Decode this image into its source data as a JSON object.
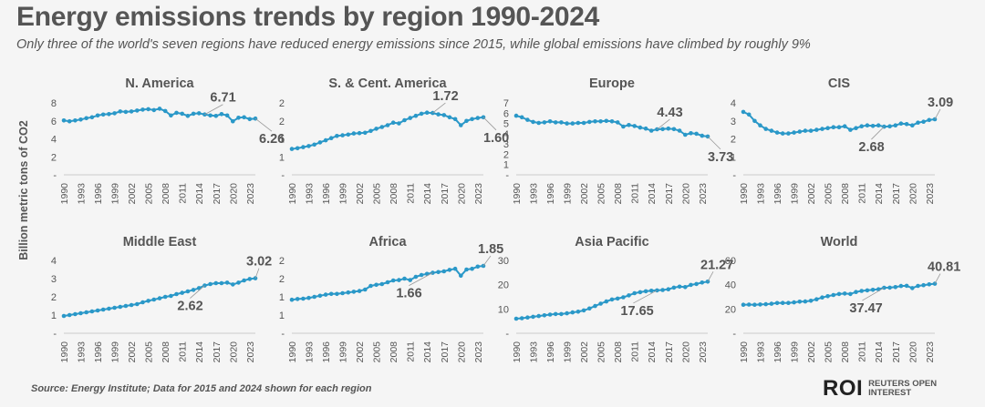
{
  "header": {
    "title": "Energy emissions trends by region 1990-2024",
    "subtitle": "Only three of the world's seven regions have reduced energy emissions since 2015, while global emissions have climbed by roughly 9%"
  },
  "y_axis_label": "Billion metric tons of CO2",
  "footer": {
    "source": "Source:  Energy Institute; Data for 2015 and 2024 shown for each region",
    "logo_mark": "ROI",
    "logo_line1": "REUTERS OPEN",
    "logo_line2": "INTEREST"
  },
  "colors": {
    "line": "#2a98c8",
    "marker": "#2a98c8",
    "text": "#555555",
    "axis": "#cccccc"
  },
  "chart_data": [
    {
      "type": "line",
      "title": "N. America",
      "ylim": [
        0,
        8
      ],
      "yticks": [
        0,
        2,
        4,
        6,
        8
      ],
      "ytick_labels": [
        "-",
        "2",
        "4",
        "6",
        "8"
      ],
      "x_tick_labels": [
        "1990",
        "1993",
        "1996",
        "1999",
        "2002",
        "2005",
        "2008",
        "2011",
        "2014",
        "2017",
        "2020",
        "2023"
      ],
      "x": [
        1990,
        1991,
        1992,
        1993,
        1994,
        1995,
        1996,
        1997,
        1998,
        1999,
        2000,
        2001,
        2002,
        2003,
        2004,
        2005,
        2006,
        2007,
        2008,
        2009,
        2010,
        2011,
        2012,
        2013,
        2014,
        2015,
        2016,
        2017,
        2018,
        2019,
        2020,
        2021,
        2022,
        2023,
        2024
      ],
      "values": [
        6.05,
        5.95,
        6.05,
        6.15,
        6.3,
        6.4,
        6.6,
        6.7,
        6.75,
        6.85,
        7.05,
        7.0,
        7.05,
        7.15,
        7.25,
        7.3,
        7.2,
        7.35,
        7.1,
        6.6,
        6.9,
        6.8,
        6.55,
        6.8,
        6.85,
        6.71,
        6.6,
        6.55,
        6.75,
        6.6,
        5.95,
        6.35,
        6.4,
        6.2,
        6.26
      ],
      "annotations": [
        {
          "text": "6.71",
          "year": 2015,
          "value": 6.71,
          "position": "above"
        },
        {
          "text": "6.26",
          "year": 2024,
          "value": 6.26,
          "position": "below"
        }
      ]
    },
    {
      "type": "line",
      "title": "S. & Cent. America",
      "ylim": [
        0,
        2.0
      ],
      "yticks": [
        0,
        0.5,
        1.0,
        1.5,
        2.0
      ],
      "ytick_labels": [
        "-",
        "1",
        "1",
        "2",
        "2"
      ],
      "x_tick_labels": [
        "1990",
        "1993",
        "1996",
        "1999",
        "2002",
        "2005",
        "2008",
        "2011",
        "2014",
        "2017",
        "2020",
        "2023"
      ],
      "x": [
        1990,
        1991,
        1992,
        1993,
        1994,
        1995,
        1996,
        1997,
        1998,
        1999,
        2000,
        2001,
        2002,
        2003,
        2004,
        2005,
        2006,
        2007,
        2008,
        2009,
        2010,
        2011,
        2012,
        2013,
        2014,
        2015,
        2016,
        2017,
        2018,
        2019,
        2020,
        2021,
        2022,
        2023,
        2024
      ],
      "values": [
        0.72,
        0.74,
        0.77,
        0.8,
        0.84,
        0.9,
        0.96,
        1.02,
        1.08,
        1.1,
        1.12,
        1.15,
        1.16,
        1.17,
        1.22,
        1.28,
        1.33,
        1.38,
        1.45,
        1.43,
        1.52,
        1.58,
        1.64,
        1.7,
        1.73,
        1.72,
        1.68,
        1.66,
        1.6,
        1.55,
        1.38,
        1.5,
        1.55,
        1.58,
        1.6
      ],
      "annotations": [
        {
          "text": "1.72",
          "year": 2015,
          "value": 1.72,
          "position": "above"
        },
        {
          "text": "1.60",
          "year": 2024,
          "value": 1.6,
          "position": "below"
        }
      ]
    },
    {
      "type": "line",
      "title": "Europe",
      "ylim": [
        0,
        7
      ],
      "yticks": [
        0,
        1,
        2,
        3,
        4,
        5,
        6,
        7
      ],
      "ytick_labels": [
        "-",
        "1",
        "2",
        "3",
        "4",
        "5",
        "6",
        "7"
      ],
      "x_tick_labels": [
        "1990",
        "1993",
        "1996",
        "1999",
        "2002",
        "2005",
        "2008",
        "2011",
        "2014",
        "2017",
        "2020",
        "2023"
      ],
      "x": [
        1990,
        1991,
        1992,
        1993,
        1994,
        1995,
        1996,
        1997,
        1998,
        1999,
        2000,
        2001,
        2002,
        2003,
        2004,
        2005,
        2006,
        2007,
        2008,
        2009,
        2010,
        2011,
        2012,
        2013,
        2014,
        2015,
        2016,
        2017,
        2018,
        2019,
        2020,
        2021,
        2022,
        2023,
        2024
      ],
      "values": [
        5.75,
        5.6,
        5.35,
        5.15,
        5.05,
        5.1,
        5.2,
        5.1,
        5.1,
        5.0,
        5.0,
        5.05,
        5.05,
        5.15,
        5.2,
        5.2,
        5.25,
        5.2,
        5.1,
        4.7,
        4.85,
        4.75,
        4.6,
        4.5,
        4.3,
        4.43,
        4.45,
        4.5,
        4.45,
        4.3,
        3.9,
        4.05,
        4.0,
        3.8,
        3.73
      ],
      "annotations": [
        {
          "text": "4.43",
          "year": 2015,
          "value": 4.43,
          "position": "above"
        },
        {
          "text": "3.73",
          "year": 2024,
          "value": 3.73,
          "position": "below"
        }
      ]
    },
    {
      "type": "line",
      "title": "CIS",
      "ylim": [
        0,
        4
      ],
      "yticks": [
        0,
        1,
        2,
        3,
        4
      ],
      "ytick_labels": [
        "-",
        "1",
        "2",
        "3",
        "4"
      ],
      "x_tick_labels": [
        "1990",
        "1993",
        "1996",
        "1999",
        "2002",
        "2005",
        "2008",
        "2011",
        "2014",
        "2017",
        "2020",
        "2023"
      ],
      "x": [
        1990,
        1991,
        1992,
        1993,
        1994,
        1995,
        1996,
        1997,
        1998,
        1999,
        2000,
        2001,
        2002,
        2003,
        2004,
        2005,
        2006,
        2007,
        2008,
        2009,
        2010,
        2011,
        2012,
        2013,
        2014,
        2015,
        2016,
        2017,
        2018,
        2019,
        2020,
        2021,
        2022,
        2023,
        2024
      ],
      "values": [
        3.5,
        3.35,
        3.0,
        2.75,
        2.55,
        2.45,
        2.35,
        2.3,
        2.3,
        2.35,
        2.4,
        2.45,
        2.45,
        2.5,
        2.55,
        2.6,
        2.65,
        2.65,
        2.7,
        2.5,
        2.6,
        2.7,
        2.75,
        2.72,
        2.75,
        2.68,
        2.7,
        2.75,
        2.85,
        2.82,
        2.75,
        2.9,
        2.95,
        3.05,
        3.09
      ],
      "annotations": [
        {
          "text": "2.68",
          "year": 2015,
          "value": 2.68,
          "position": "below"
        },
        {
          "text": "3.09",
          "year": 2024,
          "value": 3.09,
          "position": "above"
        }
      ]
    },
    {
      "type": "line",
      "title": "Middle East",
      "ylim": [
        0,
        4
      ],
      "yticks": [
        0,
        1,
        2,
        3,
        4
      ],
      "ytick_labels": [
        "-",
        "1",
        "2",
        "3",
        "4"
      ],
      "x_tick_labels": [
        "1990",
        "1993",
        "1996",
        "1999",
        "2002",
        "2005",
        "2008",
        "2011",
        "2014",
        "2017",
        "2020",
        "2023"
      ],
      "x": [
        1990,
        1991,
        1992,
        1993,
        1994,
        1995,
        1996,
        1997,
        1998,
        1999,
        2000,
        2001,
        2002,
        2003,
        2004,
        2005,
        2006,
        2007,
        2008,
        2009,
        2010,
        2011,
        2012,
        2013,
        2014,
        2015,
        2016,
        2017,
        2018,
        2019,
        2020,
        2021,
        2022,
        2023,
        2024
      ],
      "values": [
        0.95,
        1.0,
        1.05,
        1.1,
        1.15,
        1.2,
        1.25,
        1.3,
        1.35,
        1.4,
        1.45,
        1.5,
        1.55,
        1.6,
        1.7,
        1.78,
        1.85,
        1.92,
        2.0,
        2.05,
        2.15,
        2.22,
        2.3,
        2.38,
        2.48,
        2.62,
        2.7,
        2.75,
        2.75,
        2.78,
        2.68,
        2.78,
        2.9,
        2.98,
        3.02
      ],
      "annotations": [
        {
          "text": "2.62",
          "year": 2015,
          "value": 2.62,
          "position": "below"
        },
        {
          "text": "3.02",
          "year": 2024,
          "value": 3.02,
          "position": "above"
        }
      ]
    },
    {
      "type": "line",
      "title": "Africa",
      "ylim": [
        0,
        2.0
      ],
      "yticks": [
        0,
        0.5,
        1.0,
        1.5,
        2.0
      ],
      "ytick_labels": [
        "-",
        "1",
        "1",
        "2",
        "2"
      ],
      "x_tick_labels": [
        "1990",
        "1993",
        "1996",
        "1999",
        "2002",
        "2005",
        "2008",
        "2011",
        "2014",
        "2017",
        "2020",
        "2023"
      ],
      "x": [
        1990,
        1991,
        1992,
        1993,
        1994,
        1995,
        1996,
        1997,
        1998,
        1999,
        2000,
        2001,
        2002,
        2003,
        2004,
        2005,
        2006,
        2007,
        2008,
        2009,
        2010,
        2011,
        2012,
        2013,
        2014,
        2015,
        2016,
        2017,
        2018,
        2019,
        2020,
        2021,
        2022,
        2023,
        2024
      ],
      "values": [
        0.92,
        0.94,
        0.95,
        0.97,
        1.0,
        1.03,
        1.06,
        1.08,
        1.08,
        1.1,
        1.12,
        1.14,
        1.16,
        1.2,
        1.3,
        1.33,
        1.35,
        1.4,
        1.45,
        1.46,
        1.5,
        1.46,
        1.55,
        1.6,
        1.63,
        1.66,
        1.68,
        1.7,
        1.74,
        1.77,
        1.58,
        1.75,
        1.77,
        1.83,
        1.85
      ],
      "annotations": [
        {
          "text": "1.66",
          "year": 2015,
          "value": 1.66,
          "position": "below"
        },
        {
          "text": "1.85",
          "year": 2024,
          "value": 1.85,
          "position": "above"
        }
      ]
    },
    {
      "type": "line",
      "title": "Asia Pacific",
      "ylim": [
        0,
        30
      ],
      "yticks": [
        0,
        10,
        20,
        30
      ],
      "ytick_labels": [
        "-",
        "10",
        "20",
        "30"
      ],
      "x_tick_labels": [
        "1990",
        "1993",
        "1996",
        "1999",
        "2002",
        "2005",
        "2008",
        "2011",
        "2014",
        "2017",
        "2020",
        "2023"
      ],
      "x": [
        1990,
        1991,
        1992,
        1993,
        1994,
        1995,
        1996,
        1997,
        1998,
        1999,
        2000,
        2001,
        2002,
        2003,
        2004,
        2005,
        2006,
        2007,
        2008,
        2009,
        2010,
        2011,
        2012,
        2013,
        2014,
        2015,
        2016,
        2017,
        2018,
        2019,
        2020,
        2021,
        2022,
        2023,
        2024
      ],
      "values": [
        6.0,
        6.2,
        6.5,
        6.8,
        7.1,
        7.4,
        7.7,
        7.9,
        7.9,
        8.2,
        8.6,
        8.9,
        9.4,
        10.2,
        11.2,
        12.2,
        13.1,
        13.9,
        14.3,
        14.8,
        15.6,
        16.5,
        16.9,
        17.3,
        17.5,
        17.65,
        17.8,
        18.1,
        18.8,
        19.2,
        19.0,
        19.9,
        20.3,
        20.9,
        21.27
      ],
      "annotations": [
        {
          "text": "17.65",
          "year": 2015,
          "value": 17.65,
          "position": "below"
        },
        {
          "text": "21.27",
          "year": 2024,
          "value": 21.27,
          "position": "above"
        }
      ]
    },
    {
      "type": "line",
      "title": "World",
      "ylim": [
        0,
        60
      ],
      "yticks": [
        0,
        20,
        40,
        60
      ],
      "ytick_labels": [
        "-",
        "20",
        "40",
        "60"
      ],
      "x_tick_labels": [
        "1990",
        "1993",
        "1996",
        "1999",
        "2002",
        "2005",
        "2008",
        "2011",
        "2014",
        "2017",
        "2020",
        "2023"
      ],
      "x": [
        1990,
        1991,
        1992,
        1993,
        1994,
        1995,
        1996,
        1997,
        1998,
        1999,
        2000,
        2001,
        2002,
        2003,
        2004,
        2005,
        2006,
        2007,
        2008,
        2009,
        2010,
        2011,
        2012,
        2013,
        2014,
        2015,
        2016,
        2017,
        2018,
        2019,
        2020,
        2021,
        2022,
        2023,
        2024
      ],
      "values": [
        23.5,
        23.6,
        23.5,
        23.7,
        23.9,
        24.3,
        24.9,
        25.0,
        25.0,
        25.4,
        26.0,
        26.2,
        26.8,
        28.0,
        29.5,
        30.5,
        31.5,
        32.3,
        32.7,
        32.3,
        34.0,
        34.9,
        35.3,
        35.8,
        36.2,
        37.47,
        37.6,
        38.0,
        38.9,
        39.1,
        37.2,
        39.0,
        39.6,
        40.3,
        40.81
      ],
      "annotations": [
        {
          "text": "37.47",
          "year": 2015,
          "value": 37.47,
          "position": "below"
        },
        {
          "text": "40.81",
          "year": 2024,
          "value": 40.81,
          "position": "above"
        }
      ]
    }
  ]
}
